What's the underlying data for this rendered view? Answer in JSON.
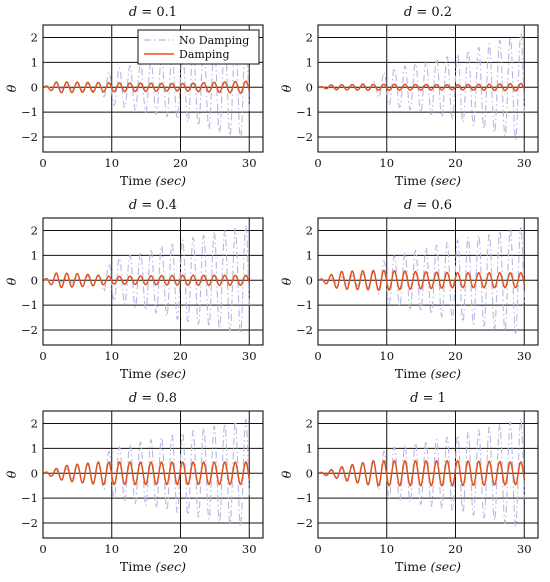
{
  "chart_data": [
    {
      "type": "line",
      "title_var": "d",
      "title_eq": " = ",
      "title_val": "0.1",
      "xlabel": "Time ",
      "xlabel_unit": "(sec)",
      "ylabel": "θ",
      "xlim": [
        0,
        32
      ],
      "ylim": [
        -2.6,
        2.5
      ],
      "xticks": [
        0,
        10,
        20,
        30
      ],
      "yticks": [
        -2,
        -1,
        0,
        1,
        2
      ],
      "grid": true,
      "legend": "top-right",
      "series": [
        {
          "name": "No Damping",
          "color": "#b7b7e4",
          "style": "dashdot",
          "sample": {
            "t_end": 30,
            "omega": 4.1,
            "envelope": [
              [
                0,
                0.0
              ],
              [
                8,
                0.15
              ],
              [
                10,
                0.7
              ],
              [
                20,
                1.3
              ],
              [
                30,
                2.2
              ]
            ]
          }
        },
        {
          "name": "Damping",
          "color": "#e0521e",
          "style": "solid",
          "sample": {
            "t_end": 30,
            "omega": 4.1,
            "envelope": [
              [
                0,
                0.0
              ],
              [
                2,
                0.22
              ],
              [
                10,
                0.18
              ],
              [
                20,
                0.15
              ],
              [
                30,
                0.25
              ]
            ]
          }
        }
      ]
    },
    {
      "type": "line",
      "title_var": "d",
      "title_eq": " = ",
      "title_val": "0.2",
      "xlabel": "Time ",
      "xlabel_unit": "(sec)",
      "ylabel": "θ",
      "xlim": [
        0,
        32
      ],
      "ylim": [
        -2.6,
        2.5
      ],
      "xticks": [
        0,
        10,
        20,
        30
      ],
      "yticks": [
        -2,
        -1,
        0,
        1,
        2
      ],
      "grid": true,
      "series": [
        {
          "name": "No Damping",
          "color": "#b7b7e4",
          "style": "dashdot",
          "sample": {
            "t_end": 30,
            "omega": 4.1,
            "envelope": [
              [
                0,
                0.0
              ],
              [
                8,
                0.2
              ],
              [
                10,
                0.7
              ],
              [
                20,
                1.3
              ],
              [
                30,
                2.2
              ]
            ]
          }
        },
        {
          "name": "Damping",
          "color": "#e0521e",
          "style": "solid",
          "sample": {
            "t_end": 30,
            "omega": 4.1,
            "envelope": [
              [
                0,
                0.0
              ],
              [
                2,
                0.1
              ],
              [
                10,
                0.12
              ],
              [
                20,
                0.1
              ],
              [
                30,
                0.15
              ]
            ]
          }
        }
      ]
    },
    {
      "type": "line",
      "title_var": "d",
      "title_eq": " = ",
      "title_val": "0.4",
      "xlabel": "Time ",
      "xlabel_unit": "(sec)",
      "ylabel": "θ",
      "xlim": [
        0,
        32
      ],
      "ylim": [
        -2.6,
        2.5
      ],
      "xticks": [
        0,
        10,
        20,
        30
      ],
      "yticks": [
        -2,
        -1,
        0,
        1,
        2
      ],
      "grid": true,
      "series": [
        {
          "name": "No Damping",
          "color": "#b7b7e4",
          "style": "dashdot",
          "sample": {
            "t_end": 30,
            "omega": 4.1,
            "envelope": [
              [
                0,
                0.0
              ],
              [
                8,
                0.2
              ],
              [
                10,
                0.8
              ],
              [
                20,
                1.6
              ],
              [
                30,
                2.2
              ]
            ]
          }
        },
        {
          "name": "Damping",
          "color": "#e0521e",
          "style": "solid",
          "sample": {
            "t_end": 30,
            "omega": 4.1,
            "envelope": [
              [
                0,
                0.0
              ],
              [
                2,
                0.3
              ],
              [
                6,
                0.25
              ],
              [
                10,
                0.15
              ],
              [
                20,
                0.2
              ],
              [
                30,
                0.2
              ]
            ]
          }
        }
      ]
    },
    {
      "type": "line",
      "title_var": "d",
      "title_eq": " = ",
      "title_val": "0.6",
      "xlabel": "Time ",
      "xlabel_unit": "(sec)",
      "ylabel": "θ",
      "xlim": [
        0,
        32
      ],
      "ylim": [
        -2.6,
        2.5
      ],
      "xticks": [
        0,
        10,
        20,
        30
      ],
      "yticks": [
        -2,
        -1,
        0,
        1,
        2
      ],
      "grid": true,
      "series": [
        {
          "name": "No Damping",
          "color": "#b7b7e4",
          "style": "dashdot",
          "sample": {
            "t_end": 30,
            "omega": 4.1,
            "envelope": [
              [
                0,
                0.0
              ],
              [
                8,
                0.3
              ],
              [
                10,
                0.9
              ],
              [
                20,
                1.6
              ],
              [
                30,
                2.2
              ]
            ]
          }
        },
        {
          "name": "Damping",
          "color": "#e0521e",
          "style": "solid",
          "sample": {
            "t_end": 30,
            "omega": 4.1,
            "envelope": [
              [
                0,
                0.0
              ],
              [
                3,
                0.35
              ],
              [
                9,
                0.4
              ],
              [
                20,
                0.3
              ],
              [
                30,
                0.3
              ]
            ]
          }
        }
      ]
    },
    {
      "type": "line",
      "title_var": "d",
      "title_eq": " = ",
      "title_val": "0.8",
      "xlabel": "Time ",
      "xlabel_unit": "(sec)",
      "ylabel": "θ",
      "xlim": [
        0,
        32
      ],
      "ylim": [
        -2.6,
        2.5
      ],
      "xticks": [
        0,
        10,
        20,
        30
      ],
      "yticks": [
        -2,
        -1,
        0,
        1,
        2
      ],
      "grid": true,
      "series": [
        {
          "name": "No Damping",
          "color": "#b7b7e4",
          "style": "dashdot",
          "sample": {
            "t_end": 30,
            "omega": 4.1,
            "envelope": [
              [
                0,
                0.0
              ],
              [
                8,
                0.4
              ],
              [
                10,
                1.0
              ],
              [
                20,
                1.6
              ],
              [
                30,
                2.2
              ]
            ]
          }
        },
        {
          "name": "Damping",
          "color": "#e0521e",
          "style": "solid",
          "sample": {
            "t_end": 30,
            "omega": 4.1,
            "envelope": [
              [
                0,
                0.0
              ],
              [
                3,
                0.3
              ],
              [
                8,
                0.45
              ],
              [
                20,
                0.45
              ],
              [
                30,
                0.45
              ]
            ]
          }
        }
      ]
    },
    {
      "type": "line",
      "title_var": "d",
      "title_eq": " = ",
      "title_val": "1",
      "xlabel": "Time ",
      "xlabel_unit": "(sec)",
      "ylabel": "θ",
      "xlim": [
        0,
        32
      ],
      "ylim": [
        -2.6,
        2.5
      ],
      "xticks": [
        0,
        10,
        20,
        30
      ],
      "yticks": [
        -2,
        -1,
        0,
        1,
        2
      ],
      "grid": true,
      "series": [
        {
          "name": "No Damping",
          "color": "#b7b7e4",
          "style": "dashdot",
          "sample": {
            "t_end": 30,
            "omega": 4.1,
            "envelope": [
              [
                0,
                0.0
              ],
              [
                8,
                0.45
              ],
              [
                10,
                1.0
              ],
              [
                20,
                1.5
              ],
              [
                30,
                2.2
              ]
            ]
          }
        },
        {
          "name": "Damping",
          "color": "#e0521e",
          "style": "solid",
          "sample": {
            "t_end": 30,
            "omega": 4.1,
            "envelope": [
              [
                0,
                0.0
              ],
              [
                4,
                0.3
              ],
              [
                8,
                0.5
              ],
              [
                20,
                0.5
              ],
              [
                30,
                0.45
              ]
            ]
          }
        }
      ]
    }
  ]
}
